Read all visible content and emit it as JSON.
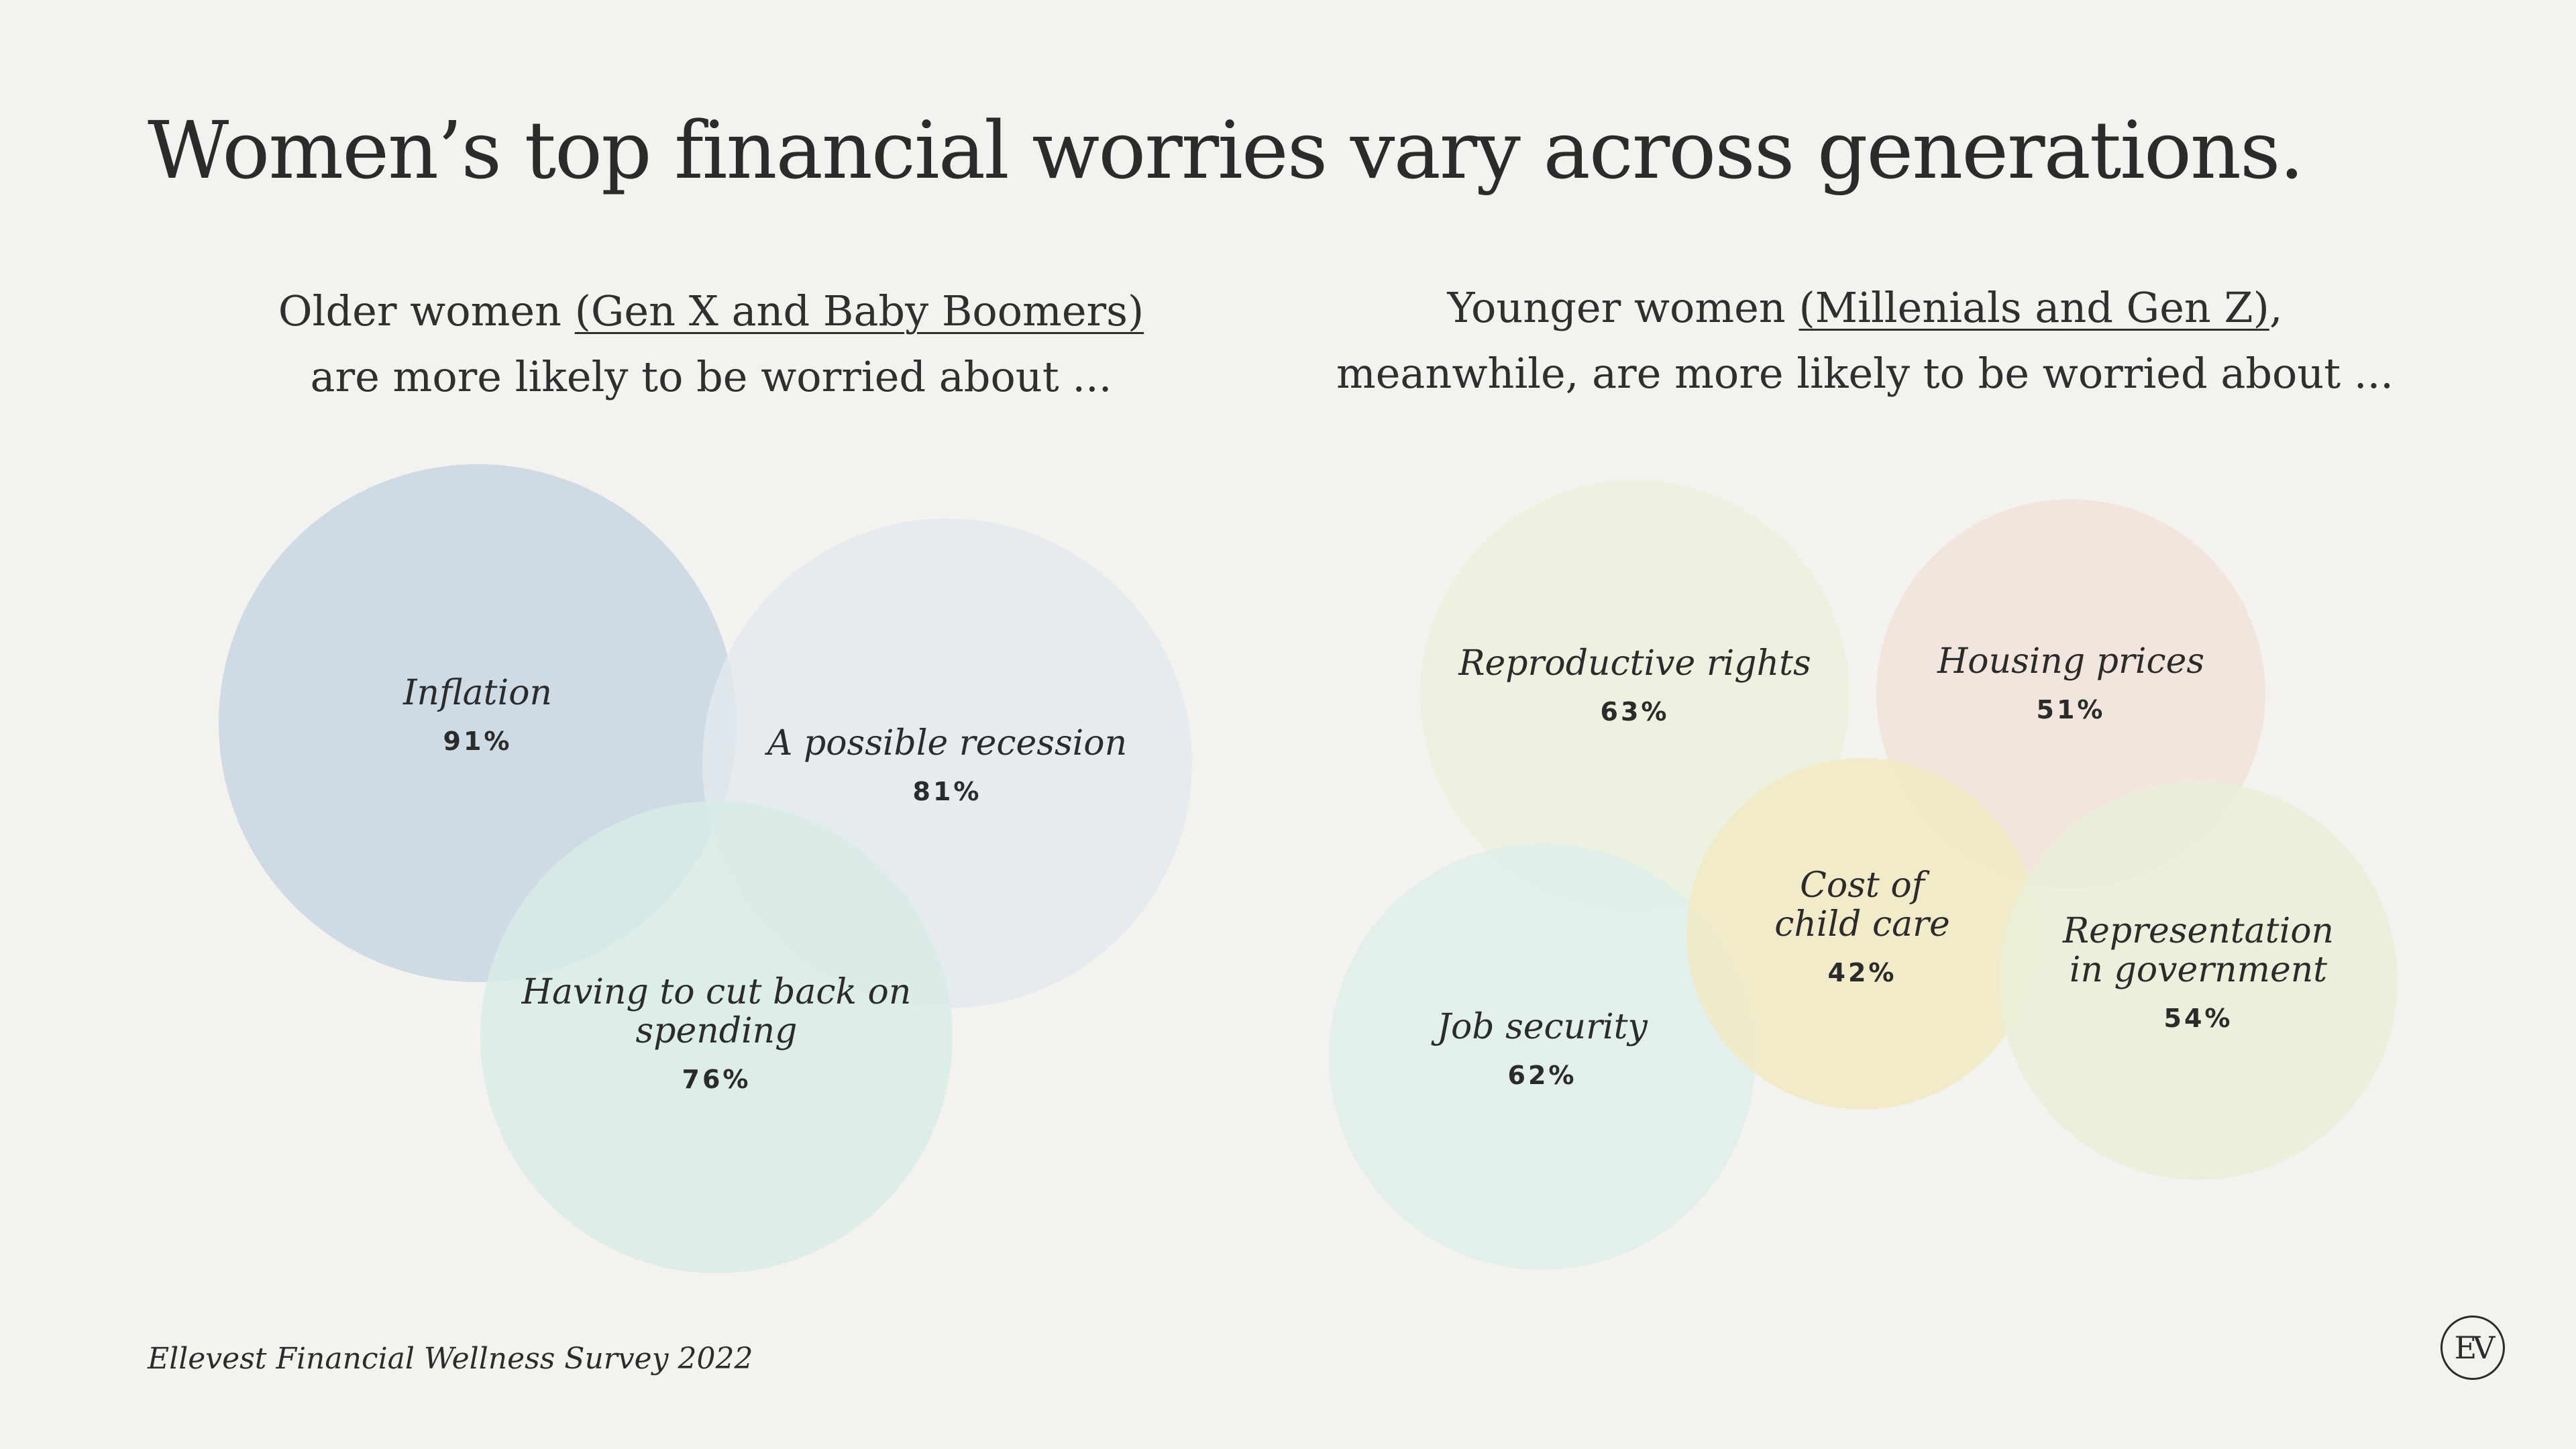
{
  "title": "Women’s top financial worries vary across generations.",
  "subhead_left": {
    "pre": "Older women ",
    "underlined": "(Gen X and Baby Boomers)",
    "line2": "are more likely to be worried about ..."
  },
  "subhead_right": {
    "pre": "Younger women ",
    "underlined": "(Millenials and Gen Z)",
    "post": ",",
    "line2": "meanwhile, are more likely to be worried about ..."
  },
  "source": "Ellevest Financial Wellness Survey 2022",
  "logo_text": "EV",
  "chart_data": [
    {
      "type": "bubble",
      "group": "Older women (Gen X and Baby Boomers)",
      "items": [
        {
          "label": [
            "Inflation"
          ],
          "value": 91,
          "value_label": "91%",
          "color": "#c6d4e2"
        },
        {
          "label": [
            "A possible recession"
          ],
          "value": 81,
          "value_label": "81%",
          "color": "#e3e9ef"
        },
        {
          "label": [
            "Having to cut back on",
            "spending"
          ],
          "value": 76,
          "value_label": "76%",
          "color": "#d8ebe6"
        }
      ]
    },
    {
      "type": "bubble",
      "group": "Younger women (Millenials and Gen Z)",
      "items": [
        {
          "label": [
            "Reproductive rights"
          ],
          "value": 63,
          "value_label": "63%",
          "color": "#ebf0dc"
        },
        {
          "label": [
            "Housing prices"
          ],
          "value": 51,
          "value_label": "51%",
          "color": "#f1e2d9"
        },
        {
          "label": [
            "Job security"
          ],
          "value": 62,
          "value_label": "62%",
          "color": "#deeeea"
        },
        {
          "label": [
            "Cost of",
            "child care"
          ],
          "value": 42,
          "value_label": "42%",
          "color": "#f2e9c2"
        },
        {
          "label": [
            "Representation",
            "in government"
          ],
          "value": 54,
          "value_label": "54%",
          "color": "#e8efd7"
        }
      ]
    }
  ]
}
